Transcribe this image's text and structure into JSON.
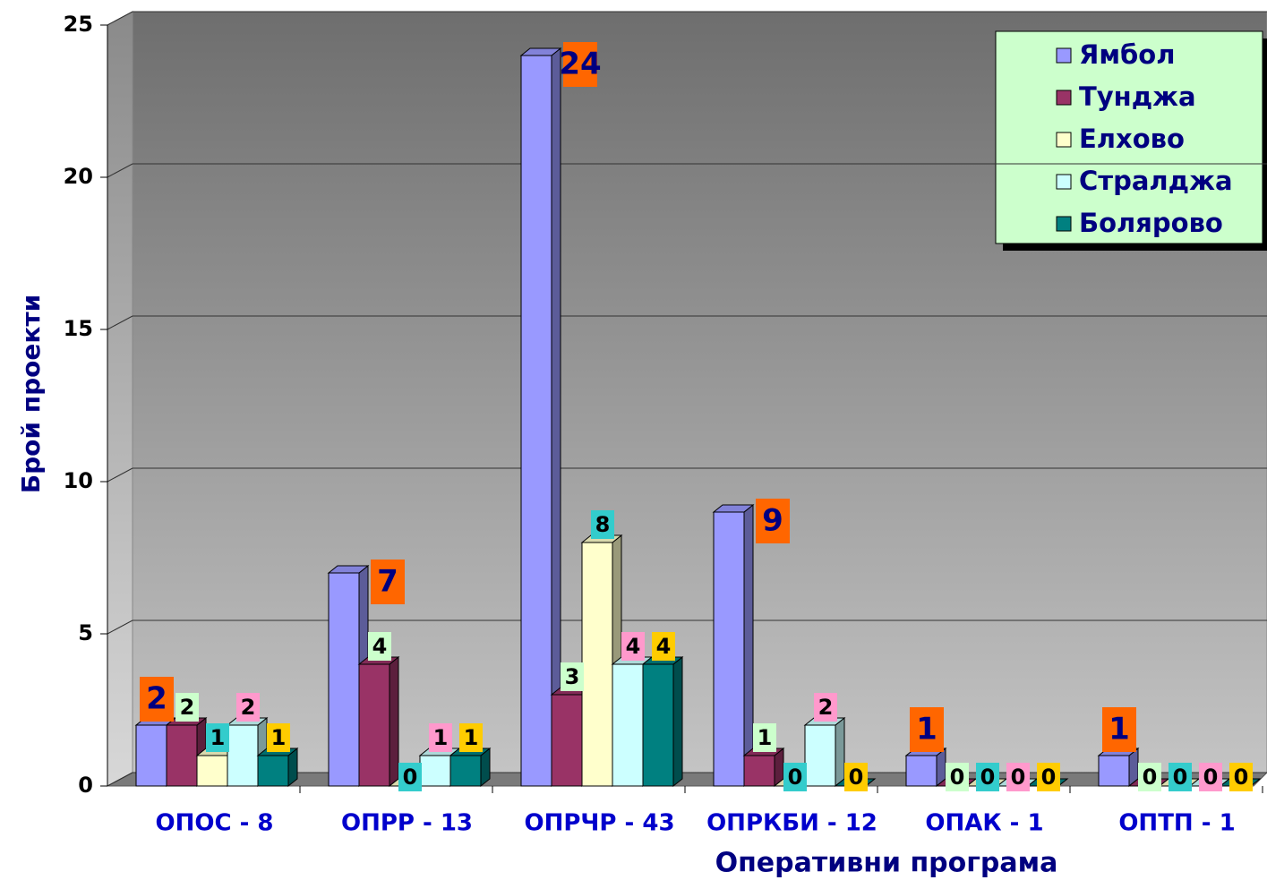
{
  "chart_data": {
    "type": "bar",
    "x_label": "Оперативни програма",
    "y_label": "Брой проекти",
    "categories": [
      "ОПОС - 8",
      "ОПРР - 13",
      "ОПРЧР - 43",
      "ОПРКБИ - 12",
      "ОПАК - 1",
      "ОПТП - 1"
    ],
    "series": [
      {
        "name": "Ямбол",
        "color": "#9999ff",
        "label_color": "#ff6600",
        "values": [
          2,
          7,
          24,
          9,
          1,
          1
        ]
      },
      {
        "name": "Тунджа",
        "color": "#993366",
        "label_color": "#ccffcc",
        "values": [
          2,
          4,
          3,
          1,
          0,
          0
        ]
      },
      {
        "name": "Елхово",
        "color": "#ffffcc",
        "label_color": "#33cccc",
        "values": [
          1,
          0,
          8,
          0,
          0,
          0
        ]
      },
      {
        "name": "Стралджа",
        "color": "#ccffff",
        "label_color": "#ff99cc",
        "values": [
          2,
          1,
          4,
          2,
          0,
          0
        ]
      },
      {
        "name": "Болярово",
        "color": "#008080",
        "label_color": "#ffcc00",
        "values": [
          1,
          1,
          4,
          0,
          0,
          0
        ]
      }
    ],
    "ylim": [
      0,
      25
    ],
    "yticks": [
      0,
      5,
      10,
      15,
      20,
      25
    ],
    "grid": true,
    "legend": "top-right"
  }
}
